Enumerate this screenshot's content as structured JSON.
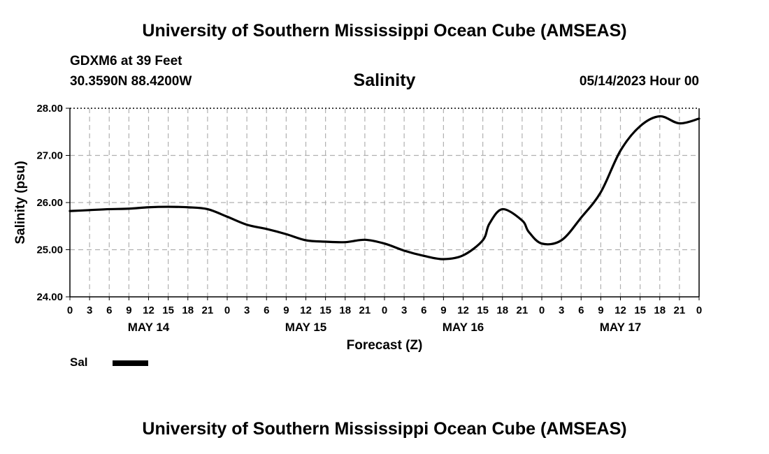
{
  "header": {
    "title": "University of Southern Mississippi Ocean Cube (AMSEAS)",
    "station": "GDXM6 at 39 Feet",
    "location": "30.3590N  88.4200W",
    "variable": "Salinity",
    "datetime": "05/14/2023 Hour 00"
  },
  "footer": {
    "title": "University of Southern Mississippi Ocean Cube (AMSEAS)"
  },
  "legend": {
    "label": "Sal"
  },
  "chart_data": {
    "type": "line",
    "title": "Salinity",
    "xlabel": "Forecast (Z)",
    "ylabel": "Salinity (psu)",
    "ylim": [
      24.0,
      28.0
    ],
    "xlim": [
      0,
      96
    ],
    "yticks": [
      "24.00",
      "25.00",
      "26.00",
      "27.00",
      "28.00"
    ],
    "ytick_values": [
      24,
      25,
      26,
      27,
      28
    ],
    "xtick_labels": [
      "0",
      "3",
      "6",
      "9",
      "12",
      "15",
      "18",
      "21",
      "0",
      "3",
      "6",
      "9",
      "12",
      "15",
      "18",
      "21",
      "0",
      "3",
      "6",
      "9",
      "12",
      "15",
      "18",
      "21",
      "0",
      "3",
      "6",
      "9",
      "12",
      "15",
      "18",
      "21",
      "0"
    ],
    "day_labels": [
      {
        "label": "MAY 14",
        "hour": 12
      },
      {
        "label": "MAY 15",
        "hour": 36
      },
      {
        "label": "MAY 16",
        "hour": 60
      },
      {
        "label": "MAY 17",
        "hour": 84
      }
    ],
    "grid": true,
    "series": [
      {
        "name": "Sal",
        "color": "#000000",
        "x": [
          0,
          3,
          6,
          9,
          12,
          15,
          18,
          21,
          24,
          27,
          30,
          33,
          36,
          39,
          42,
          45,
          48,
          51,
          54,
          57,
          60,
          63,
          64,
          66,
          69,
          70,
          72,
          75,
          78,
          81,
          84,
          87,
          90,
          93,
          96
        ],
        "values": [
          25.82,
          25.84,
          25.86,
          25.87,
          25.9,
          25.91,
          25.9,
          25.86,
          25.7,
          25.53,
          25.44,
          25.33,
          25.2,
          25.17,
          25.16,
          25.21,
          25.13,
          24.98,
          24.87,
          24.8,
          24.88,
          25.2,
          25.55,
          25.86,
          25.62,
          25.38,
          25.13,
          25.2,
          25.68,
          26.22,
          27.1,
          27.62,
          27.83,
          27.68,
          27.78
        ]
      }
    ]
  }
}
